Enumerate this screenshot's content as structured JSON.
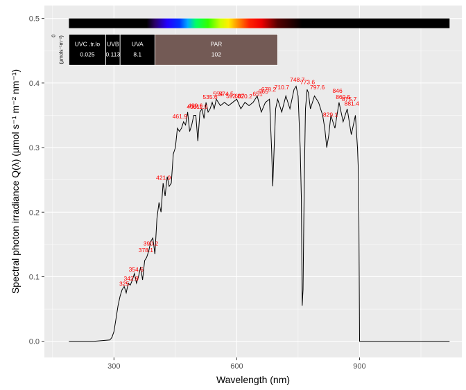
{
  "chart_data": {
    "type": "line",
    "title": "",
    "xlabel": "Wavelength (nm)",
    "ylabel": "Spectral photon irradiance  Q(λ)  (µmol s⁻¹ m⁻² nm⁻¹)",
    "xlim": [
      130,
      1150
    ],
    "ylim": [
      -0.025,
      0.52
    ],
    "x_ticks": [
      300,
      600,
      900
    ],
    "x_tick_labels": [
      "300",
      "600",
      "900"
    ],
    "y_ticks": [
      0.0,
      0.1,
      0.2,
      0.3,
      0.4,
      0.5
    ],
    "y_tick_labels": [
      "0.0",
      "0.1",
      "0.2",
      "0.3",
      "0.4",
      "0.5"
    ],
    "grid": true,
    "background": "#ebebeb",
    "line_color": "#000000",
    "series": [
      {
        "x": [
          190,
          250,
          290,
          295,
          300,
          305,
          310,
          315,
          320,
          325,
          330,
          335,
          340,
          345,
          350,
          355,
          360,
          365,
          370,
          375,
          380,
          385,
          390,
          395,
          400,
          405,
          410,
          415,
          420,
          425,
          430,
          435,
          440,
          445,
          450,
          455,
          460,
          465,
          470,
          475,
          480,
          485,
          490,
          495,
          500,
          505,
          510,
          515,
          520,
          525,
          530,
          535,
          540,
          545,
          550,
          560,
          570,
          580,
          590,
          600,
          610,
          620,
          630,
          640,
          650,
          660,
          670,
          680,
          685,
          688,
          692,
          695,
          700,
          710,
          720,
          730,
          740,
          745,
          750,
          755,
          758,
          760,
          762,
          765,
          768,
          772,
          775,
          780,
          790,
          800,
          810,
          815,
          820,
          825,
          830,
          840,
          850,
          860,
          870,
          880,
          890,
          895,
          898,
          900,
          1120
        ],
        "y": [
          0.0,
          0.0,
          0.002,
          0.006,
          0.015,
          0.035,
          0.055,
          0.07,
          0.08,
          0.085,
          0.075,
          0.09,
          0.087,
          0.095,
          0.105,
          0.09,
          0.1,
          0.115,
          0.095,
          0.125,
          0.13,
          0.14,
          0.155,
          0.16,
          0.135,
          0.19,
          0.215,
          0.2,
          0.245,
          0.225,
          0.255,
          0.24,
          0.245,
          0.29,
          0.3,
          0.33,
          0.325,
          0.33,
          0.34,
          0.335,
          0.355,
          0.325,
          0.335,
          0.35,
          0.35,
          0.31,
          0.355,
          0.36,
          0.345,
          0.37,
          0.355,
          0.36,
          0.37,
          0.36,
          0.375,
          0.365,
          0.37,
          0.365,
          0.37,
          0.375,
          0.36,
          0.37,
          0.365,
          0.37,
          0.38,
          0.355,
          0.37,
          0.375,
          0.3,
          0.24,
          0.31,
          0.36,
          0.375,
          0.355,
          0.38,
          0.36,
          0.39,
          0.395,
          0.38,
          0.3,
          0.22,
          0.055,
          0.08,
          0.25,
          0.36,
          0.39,
          0.385,
          0.36,
          0.38,
          0.37,
          0.35,
          0.33,
          0.3,
          0.32,
          0.35,
          0.33,
          0.37,
          0.34,
          0.36,
          0.32,
          0.35,
          0.3,
          0.25,
          0.0,
          0.0
        ]
      }
    ],
    "peak_labels": [
      {
        "x": 325,
        "y": 0.086,
        "label": "325"
      },
      {
        "x": 342,
        "y": 0.094,
        "label": "342.8"
      },
      {
        "x": 354,
        "y": 0.108,
        "label": "354.6"
      },
      {
        "x": 378,
        "y": 0.138,
        "label": "378.1"
      },
      {
        "x": 390,
        "y": 0.148,
        "label": "390.2"
      },
      {
        "x": 421,
        "y": 0.25,
        "label": "421.9"
      },
      {
        "x": 461,
        "y": 0.345,
        "label": "461.9"
      },
      {
        "x": 490,
        "y": 0.36,
        "label": "490"
      },
      {
        "x": 499,
        "y": 0.362,
        "label": "499.6"
      },
      {
        "x": 511,
        "y": 0.36,
        "label": "511.9"
      },
      {
        "x": 535,
        "y": 0.375,
        "label": "535.6"
      },
      {
        "x": 554,
        "y": 0.38,
        "label": "554"
      },
      {
        "x": 574,
        "y": 0.38,
        "label": "574.5"
      },
      {
        "x": 592,
        "y": 0.377,
        "label": "592.8"
      },
      {
        "x": 607,
        "y": 0.377,
        "label": "607"
      },
      {
        "x": 620,
        "y": 0.376,
        "label": "620.2"
      },
      {
        "x": 651,
        "y": 0.38,
        "label": "651"
      },
      {
        "x": 665,
        "y": 0.384,
        "label": "665"
      },
      {
        "x": 678,
        "y": 0.387,
        "label": "678.2"
      },
      {
        "x": 710,
        "y": 0.39,
        "label": "710.7"
      },
      {
        "x": 748,
        "y": 0.402,
        "label": "748.7"
      },
      {
        "x": 773,
        "y": 0.398,
        "label": "773.6"
      },
      {
        "x": 797,
        "y": 0.39,
        "label": "797.6"
      },
      {
        "x": 829,
        "y": 0.348,
        "label": "829.1"
      },
      {
        "x": 846,
        "y": 0.385,
        "label": "846"
      },
      {
        "x": 860,
        "y": 0.375,
        "label": "860.5"
      },
      {
        "x": 875,
        "y": 0.372,
        "label": "875.7"
      },
      {
        "x": 881,
        "y": 0.365,
        "label": "881.4"
      }
    ],
    "colour_bar": {
      "x_start": 190,
      "x_end": 1120,
      "y_center": 0.4925,
      "stops": [
        {
          "nm": 190,
          "color": "#000000"
        },
        {
          "nm": 380,
          "color": "#000000"
        },
        {
          "nm": 400,
          "color": "#2a0066"
        },
        {
          "nm": 430,
          "color": "#2200ff"
        },
        {
          "nm": 460,
          "color": "#0033ff"
        },
        {
          "nm": 480,
          "color": "#00aaff"
        },
        {
          "nm": 500,
          "color": "#00ff66"
        },
        {
          "nm": 530,
          "color": "#33ff00"
        },
        {
          "nm": 560,
          "color": "#ccff00"
        },
        {
          "nm": 580,
          "color": "#ffee00"
        },
        {
          "nm": 600,
          "color": "#ff9900"
        },
        {
          "nm": 630,
          "color": "#ff2200"
        },
        {
          "nm": 660,
          "color": "#ee0000"
        },
        {
          "nm": 700,
          "color": "#550000"
        },
        {
          "nm": 760,
          "color": "#000000"
        },
        {
          "nm": 1120,
          "color": "#000000"
        }
      ]
    },
    "bands_panel": {
      "y_top": 0.4755,
      "y_bottom": 0.4275,
      "bands": [
        {
          "name": "UVC .tr.lo",
          "value": "0.025",
          "x_start": 190,
          "x_end": 280,
          "color": "#000000"
        },
        {
          "name": "UVB",
          "value": "0.113",
          "x_start": 280,
          "x_end": 315,
          "color": "#000000"
        },
        {
          "name": "UVA",
          "value": "8.1",
          "x_start": 315,
          "x_end": 400,
          "color": "#000000"
        },
        {
          "name": "PAR",
          "value": "102",
          "x_start": 400,
          "x_end": 700,
          "color": "#735a55"
        }
      ],
      "side_label_value": "0",
      "side_label_unit": "(µmols⁻¹m⁻²)",
      "side_label_x": 160
    }
  }
}
